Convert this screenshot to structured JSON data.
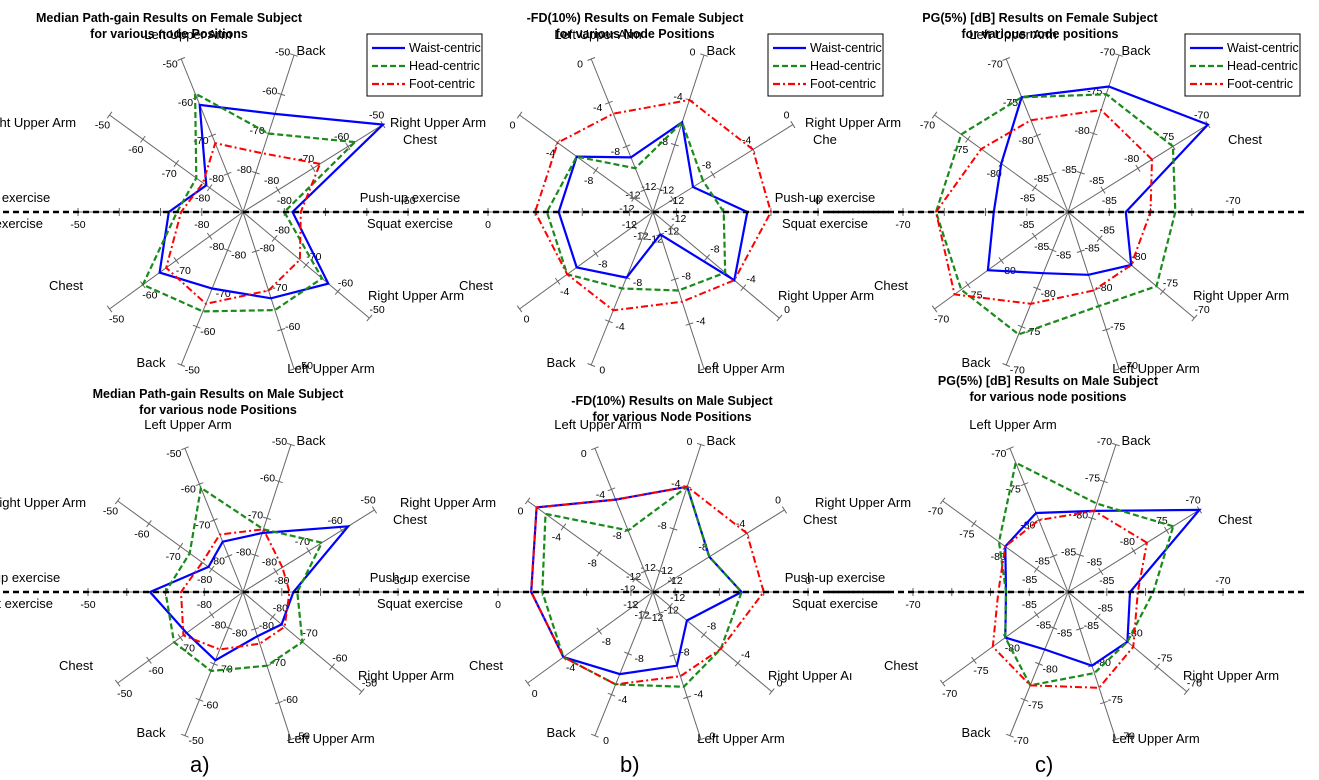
{
  "figure": {
    "subfigure_labels": [
      "a)",
      "b)",
      "c)"
    ]
  },
  "chart_data": [
    {
      "type": "radar",
      "title": "Median Path-gain Results on Female Subject",
      "subtitle": "for various node Positions",
      "axes": [
        "Chest",
        "Back",
        "Left Upper Arm",
        "Right Upper Arm",
        "Push-up exercise",
        "Right Upper Arm",
        "Left Upper Arm",
        "Back",
        "Chest",
        "Squat  exercise",
        "Right Upper Arm",
        "Left Upper Arm"
      ],
      "axis_labels": {
        "top_left": "Left Upper Arm",
        "top_right": "Back",
        "right_upper": "Chest",
        "left_upper": "Right Upper Arm",
        "mid_upper": "Push-up exercise",
        "mid_lower": "Squat  exercise",
        "left_lower": "Chest",
        "right_lower": "Right Upper Arm",
        "bottom_left": "Back",
        "bottom_right": "Left Upper Arm"
      },
      "rlim": [
        -90,
        -50
      ],
      "tick_labels": [
        "-80",
        "-70",
        "-60",
        "-50"
      ],
      "legend": {
        "position": "top-right",
        "entries": [
          "Waist-centric",
          "Head-centric",
          "Foot-centric"
        ]
      },
      "series": [
        {
          "name": "Waist-centric",
          "values": [
            -50,
            -65,
            -62,
            -79,
            -72,
            -65,
            -70,
            -68,
            -63,
            -78
          ]
        },
        {
          "name": "Head-centric",
          "values": [
            -58,
            -70,
            -59,
            -76,
            -74,
            -60,
            -64,
            -65,
            -65,
            -80
          ]
        },
        {
          "name": "Foot-centric",
          "values": [
            -68,
            -75,
            -72,
            -78,
            -75,
            -67,
            -66,
            -70,
            -72,
            -76
          ]
        }
      ]
    },
    {
      "type": "radar",
      "title": "-FD(10%) Results on Female Subject",
      "subtitle": "for various Node Positions",
      "axis_labels": {
        "top_left": "Left Upper Arm",
        "top_right": "Back",
        "right_upper": "Chе",
        "left_upper": "Right Upper Arm",
        "mid_upper": "Push-up exercise",
        "mid_lower": "Squat  exercise",
        "left_lower": "Chest",
        "right_lower": "Right Upper Arm",
        "bottom_left": "Back",
        "bottom_right": "Left Upper Arm"
      },
      "rlim": [
        -14,
        0
      ],
      "tick_labels": [
        "-12",
        "-8",
        "-4",
        "0"
      ],
      "legend": {
        "position": "top-right",
        "entries": [
          "Waist-centric",
          "Head-centric",
          "Foot-centric"
        ]
      },
      "series": [
        {
          "name": "Waist-centric",
          "values": [
            -10,
            -6,
            -9,
            -6,
            -6,
            -6,
            -8,
            -12,
            -5,
            -6
          ]
        },
        {
          "name": "Head-centric",
          "values": [
            -9,
            -6,
            -10,
            -6,
            -5,
            -5,
            -7,
            -7,
            -6,
            -8
          ]
        },
        {
          "name": "Foot-centric",
          "values": [
            -4,
            -4,
            -5,
            -4,
            -4,
            -5,
            -5,
            -6,
            -5,
            -4
          ]
        }
      ]
    },
    {
      "type": "radar",
      "title": "PG(5%) [dB] Results on Female Subject",
      "subtitle": "for various node positions",
      "axis_labels": {
        "top_left": "Left Upper Arm",
        "top_right": "Back",
        "right_upper": "Chest",
        "left_upper": "Right Upper Arm",
        "mid_upper": "Push-up exercise",
        "mid_lower": "Squat  exercise",
        "left_lower": "Chest",
        "right_lower": "Right Upper Arm",
        "bottom_left": "Back",
        "bottom_right": "Left Upper Arm"
      },
      "rlim": [
        -90,
        -70
      ],
      "tick_labels": [
        "-85",
        "-80",
        "-75",
        "-70"
      ],
      "legend": {
        "position": "top-right",
        "entries": [
          "Waist-centric",
          "Head-centric",
          "Foot-centric"
        ]
      },
      "series": [
        {
          "name": "Waist-centric",
          "values": [
            -70,
            -74,
            -75,
            -80,
            -81,
            -78,
            -82,
            -82,
            -80,
            -83
          ]
        },
        {
          "name": "Head-centric",
          "values": [
            -75,
            -75,
            -75,
            -74,
            -74,
            -74,
            -74,
            -78,
            -76,
            -77
          ]
        },
        {
          "name": "Foot-centric",
          "values": [
            -78,
            -77,
            -78,
            -77,
            -74,
            -73,
            -78,
            -80,
            -80,
            -80
          ]
        }
      ]
    },
    {
      "type": "radar",
      "title": "Median Path-gain Results on Male Subject",
      "subtitle": "for various node Positions",
      "axis_labels": {
        "top_left": "Left Upper Arm",
        "top_right": "Back",
        "right_upper": "Chest",
        "left_upper": "Right Upper Arm",
        "mid_upper": "Push-up exercise",
        "mid_lower": "Squat  exercise",
        "left_lower": "Chest",
        "right_lower": "Right Upper Arm",
        "bottom_left": "Back",
        "bottom_right": "Left Upper Arm"
      },
      "rlim": [
        -90,
        -50
      ],
      "tick_labels": [
        "-80",
        "-70",
        "-60",
        "-50"
      ],
      "legend": {
        "position": "top-right",
        "entries": [
          "Waist-centric",
          "Head-centric",
          "Foot-centric"
        ]
      },
      "series": [
        {
          "name": "Waist-centric",
          "values": [
            -58,
            -74,
            -76,
            -79,
            -66,
            -72,
            -71,
            -78,
            -77,
            -77
          ]
        },
        {
          "name": "Head-centric",
          "values": [
            -66,
            -73,
            -61,
            -73,
            -70,
            -68,
            -68,
            -70,
            -70,
            -76
          ]
        },
        {
          "name": "Foot-centric",
          "values": [
            -78,
            -73,
            -74,
            -77,
            -74,
            -71,
            -74,
            -76,
            -76,
            -78
          ]
        }
      ]
    },
    {
      "type": "radar",
      "title": "-FD(10%) Results on Male Subject",
      "subtitle": "for various Node Positions",
      "axis_labels": {
        "top_left": "Left Upper Arm",
        "top_right": "Back",
        "right_upper": "Chest",
        "left_upper": "Right Upper Arm",
        "mid_upper": "Push-up exercise",
        "mid_lower": "Squat  exercise",
        "left_lower": "Chest",
        "right_lower": "Right Upper Aı",
        "bottom_left": "Back",
        "bottom_right": "Left Upper Arm"
      },
      "rlim": [
        -14,
        0
      ],
      "tick_labels": [
        "-12",
        "-8",
        "-4",
        "0"
      ],
      "legend": {
        "position": "top-right",
        "entries": [
          "Waist-centric",
          "Head-centric",
          "Foot-centric"
        ]
      },
      "series": [
        {
          "name": "Waist-centric",
          "values": [
            -8,
            -4,
            -5,
            -1,
            -3,
            -4,
            -6,
            -7,
            -10,
            -6
          ]
        },
        {
          "name": "Head-centric",
          "values": [
            -8,
            -4,
            -8,
            -2,
            -4,
            -4,
            -5,
            -5,
            -6,
            -6
          ]
        },
        {
          "name": "Foot-centric",
          "values": [
            -4,
            -4,
            -5,
            -1,
            -3,
            -4,
            -5,
            -6,
            -6,
            -4
          ]
        }
      ]
    },
    {
      "type": "radar",
      "title": "PG(5%) [dB] Results on Male Subject",
      "subtitle": "for various node positions",
      "axis_labels": {
        "top_left": "Left Upper Arm",
        "top_right": "Back",
        "right_upper": "Chest",
        "left_upper": "Right Upper Arm",
        "mid_upper": "Push-up exercise",
        "mid_lower": "Squat  exercise",
        "left_lower": "Chest",
        "right_lower": "Right Upper Arm",
        "bottom_left": "Back",
        "bottom_right": "Left Upper Arm"
      },
      "rlim": [
        -90,
        -70
      ],
      "tick_labels": [
        "-85",
        "-80",
        "-75",
        "-70"
      ],
      "legend": {
        "position": "top-right",
        "entries": [
          "Waist-centric",
          "Head-centric",
          "Foot-centric"
        ]
      },
      "series": [
        {
          "name": "Waist-centric",
          "values": [
            -70,
            -79,
            -79,
            -80,
            -82,
            -80,
            -82,
            -80,
            -80,
            -82
          ]
        },
        {
          "name": "Head-centric",
          "values": [
            -74,
            -78,
            -72,
            -79,
            -82,
            -80,
            -77,
            -79,
            -80,
            -79
          ]
        },
        {
          "name": "Foot-centric",
          "values": [
            -78,
            -79,
            -80,
            -80,
            -81,
            -78,
            -77,
            -77,
            -79,
            -81
          ]
        }
      ]
    }
  ]
}
